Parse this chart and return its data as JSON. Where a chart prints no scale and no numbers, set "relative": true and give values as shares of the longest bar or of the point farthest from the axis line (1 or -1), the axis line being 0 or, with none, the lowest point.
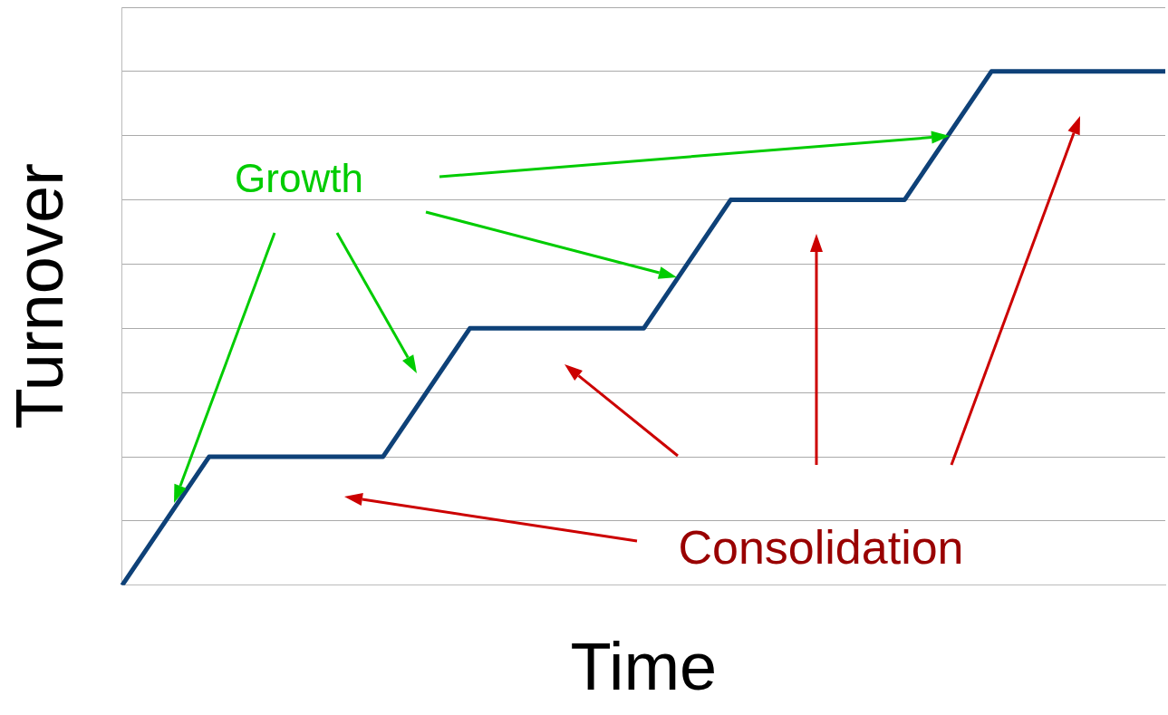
{
  "chart_data": {
    "type": "line",
    "xlabel": "Time",
    "ylabel": "Turnover",
    "relative": true,
    "grid": "y",
    "legend": false,
    "marker": "none",
    "line_style": "solid",
    "categories": [
      null,
      null,
      null,
      null,
      null,
      null,
      null,
      null,
      null,
      null,
      null,
      null,
      null
    ],
    "series": [
      {
        "color": "#0e4178",
        "values": [
          0,
          0.25,
          0.25,
          0.25,
          0.5,
          0.5,
          0.5,
          0.75,
          0.75,
          0.75,
          1,
          1,
          1
        ]
      }
    ],
    "annotations": [
      "Growth",
      "Consolidation"
    ]
  }
}
